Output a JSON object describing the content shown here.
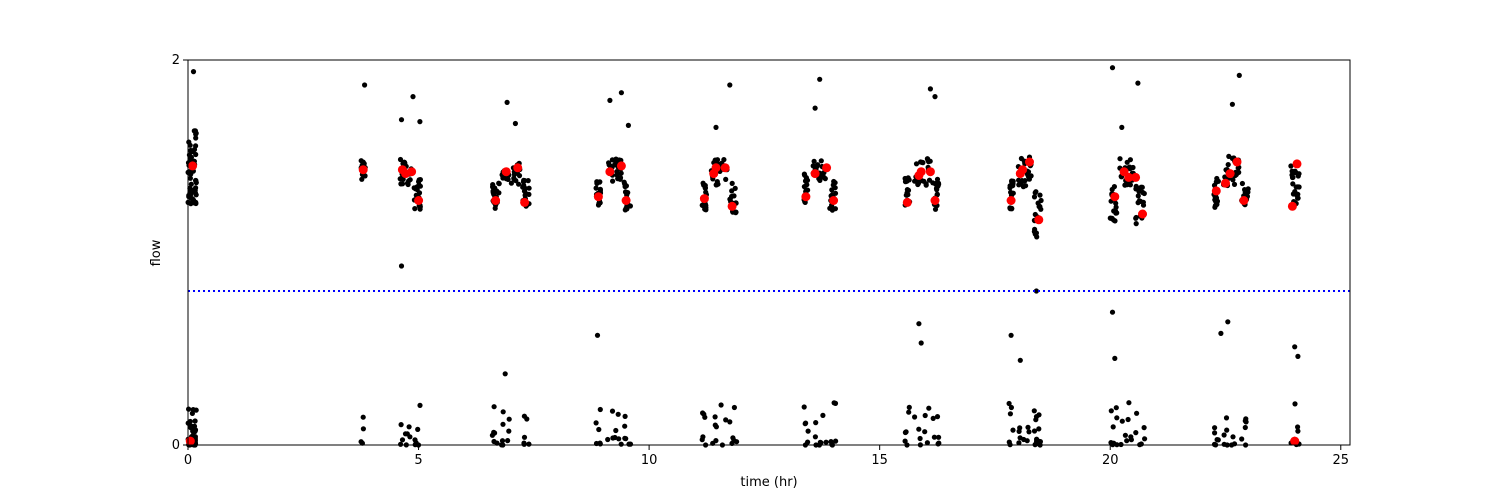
{
  "chart_data": {
    "type": "scatter",
    "title": "",
    "xlabel": "time (hr)",
    "ylabel": "flow",
    "xlim": [
      0,
      25.2
    ],
    "ylim": [
      0,
      2
    ],
    "x_ticks": [
      0,
      5,
      10,
      15,
      20,
      25
    ],
    "y_ticks": [
      0,
      2
    ],
    "x_tick_labels": [
      "0",
      "5",
      "10",
      "15",
      "20",
      "25"
    ],
    "y_tick_labels": [
      "0",
      "2"
    ],
    "grid": false,
    "threshold_line": {
      "y": 0.8,
      "style": "dotted",
      "color": "#0000ff"
    },
    "colors": {
      "raw": "#000000",
      "highlighted": "#ff0000",
      "threshold": "#0000ff"
    },
    "clusters": [
      {
        "x_start": 0.0,
        "x_end": 0.18,
        "high_center": 1.44,
        "high_spread": 0.2,
        "n_high": 60,
        "n_low": 40
      },
      {
        "x_start": 3.75,
        "x_end": 3.85,
        "high_center": 1.43,
        "high_spread": 0.05,
        "n_high": 14,
        "n_low": 4
      },
      {
        "x_start": 4.6,
        "x_end": 4.85,
        "high_center": 1.42,
        "high_spread": 0.07,
        "n_high": 24,
        "n_low": 8
      },
      {
        "x_start": 4.9,
        "x_end": 5.05,
        "high_center": 1.3,
        "high_spread": 0.08,
        "n_high": 20,
        "n_low": 6
      },
      {
        "x_start": 6.6,
        "x_end": 6.75,
        "high_center": 1.3,
        "high_spread": 0.08,
        "n_high": 20,
        "n_low": 6
      },
      {
        "x_start": 6.8,
        "x_end": 7.2,
        "high_center": 1.42,
        "high_spread": 0.07,
        "n_high": 28,
        "n_low": 8
      },
      {
        "x_start": 7.25,
        "x_end": 7.4,
        "high_center": 1.3,
        "high_spread": 0.08,
        "n_high": 20,
        "n_low": 6
      },
      {
        "x_start": 8.85,
        "x_end": 8.95,
        "high_center": 1.3,
        "high_spread": 0.08,
        "n_high": 18,
        "n_low": 6
      },
      {
        "x_start": 9.1,
        "x_end": 9.4,
        "high_center": 1.43,
        "high_spread": 0.06,
        "n_high": 26,
        "n_low": 8
      },
      {
        "x_start": 9.45,
        "x_end": 9.6,
        "high_center": 1.3,
        "high_spread": 0.08,
        "n_high": 20,
        "n_low": 6
      },
      {
        "x_start": 11.15,
        "x_end": 11.25,
        "high_center": 1.3,
        "high_spread": 0.08,
        "n_high": 18,
        "n_low": 6
      },
      {
        "x_start": 11.3,
        "x_end": 11.7,
        "high_center": 1.42,
        "high_spread": 0.07,
        "n_high": 28,
        "n_low": 8
      },
      {
        "x_start": 11.75,
        "x_end": 11.9,
        "high_center": 1.28,
        "high_spread": 0.08,
        "n_high": 18,
        "n_low": 6
      },
      {
        "x_start": 13.35,
        "x_end": 13.45,
        "high_center": 1.33,
        "high_spread": 0.08,
        "n_high": 18,
        "n_low": 6
      },
      {
        "x_start": 13.55,
        "x_end": 13.85,
        "high_center": 1.42,
        "high_spread": 0.06,
        "n_high": 24,
        "n_low": 8
      },
      {
        "x_start": 13.9,
        "x_end": 14.05,
        "high_center": 1.3,
        "high_spread": 0.08,
        "n_high": 18,
        "n_low": 6
      },
      {
        "x_start": 15.55,
        "x_end": 15.65,
        "high_center": 1.3,
        "high_spread": 0.09,
        "n_high": 18,
        "n_low": 6
      },
      {
        "x_start": 15.75,
        "x_end": 16.1,
        "high_center": 1.42,
        "high_spread": 0.07,
        "n_high": 26,
        "n_low": 8
      },
      {
        "x_start": 16.15,
        "x_end": 16.3,
        "high_center": 1.3,
        "high_spread": 0.08,
        "n_high": 18,
        "n_low": 6
      },
      {
        "x_start": 17.8,
        "x_end": 17.9,
        "high_center": 1.3,
        "high_spread": 0.08,
        "n_high": 18,
        "n_low": 6
      },
      {
        "x_start": 18.0,
        "x_end": 18.3,
        "high_center": 1.42,
        "high_spread": 0.08,
        "n_high": 26,
        "n_low": 8
      },
      {
        "x_start": 18.35,
        "x_end": 18.5,
        "high_center": 1.2,
        "high_spread": 0.12,
        "n_high": 20,
        "n_low": 14
      },
      {
        "x_start": 20.0,
        "x_end": 20.15,
        "high_center": 1.25,
        "high_spread": 0.1,
        "n_high": 20,
        "n_low": 8
      },
      {
        "x_start": 20.2,
        "x_end": 20.5,
        "high_center": 1.42,
        "high_spread": 0.07,
        "n_high": 26,
        "n_low": 8
      },
      {
        "x_start": 20.55,
        "x_end": 20.75,
        "high_center": 1.25,
        "high_spread": 0.1,
        "n_high": 20,
        "n_low": 6
      },
      {
        "x_start": 22.25,
        "x_end": 22.35,
        "high_center": 1.3,
        "high_spread": 0.09,
        "n_high": 18,
        "n_low": 6
      },
      {
        "x_start": 22.45,
        "x_end": 22.8,
        "high_center": 1.42,
        "high_spread": 0.08,
        "n_high": 26,
        "n_low": 8
      },
      {
        "x_start": 22.85,
        "x_end": 23.0,
        "high_center": 1.3,
        "high_spread": 0.08,
        "n_high": 18,
        "n_low": 6
      },
      {
        "x_start": 23.9,
        "x_end": 24.1,
        "high_center": 1.35,
        "high_spread": 0.1,
        "n_high": 24,
        "n_low": 8
      }
    ],
    "outliers": [
      {
        "x": 0.12,
        "y": 1.94
      },
      {
        "x": 3.83,
        "y": 1.87
      },
      {
        "x": 4.63,
        "y": 1.69
      },
      {
        "x": 4.88,
        "y": 1.81
      },
      {
        "x": 5.03,
        "y": 1.68
      },
      {
        "x": 4.63,
        "y": 0.93
      },
      {
        "x": 6.92,
        "y": 1.78
      },
      {
        "x": 7.1,
        "y": 1.67
      },
      {
        "x": 8.88,
        "y": 0.57
      },
      {
        "x": 9.15,
        "y": 1.79
      },
      {
        "x": 9.4,
        "y": 1.83
      },
      {
        "x": 9.55,
        "y": 1.66
      },
      {
        "x": 11.45,
        "y": 1.65
      },
      {
        "x": 11.75,
        "y": 1.87
      },
      {
        "x": 13.6,
        "y": 1.75
      },
      {
        "x": 13.7,
        "y": 1.9
      },
      {
        "x": 15.85,
        "y": 0.63
      },
      {
        "x": 15.9,
        "y": 0.53
      },
      {
        "x": 16.1,
        "y": 1.85
      },
      {
        "x": 16.2,
        "y": 1.81
      },
      {
        "x": 17.85,
        "y": 0.57
      },
      {
        "x": 18.05,
        "y": 0.44
      },
      {
        "x": 20.05,
        "y": 1.96
      },
      {
        "x": 20.25,
        "y": 1.65
      },
      {
        "x": 20.6,
        "y": 1.88
      },
      {
        "x": 20.05,
        "y": 0.69
      },
      {
        "x": 20.1,
        "y": 0.45
      },
      {
        "x": 22.4,
        "y": 0.58
      },
      {
        "x": 22.55,
        "y": 0.64
      },
      {
        "x": 22.65,
        "y": 1.77
      },
      {
        "x": 22.8,
        "y": 1.92
      },
      {
        "x": 24.0,
        "y": 0.51
      },
      {
        "x": 24.07,
        "y": 0.46
      },
      {
        "x": 6.88,
        "y": 0.37
      },
      {
        "x": 18.4,
        "y": 0.8
      }
    ],
    "highlighted_points": [
      {
        "x": 0.1,
        "y": 1.45
      },
      {
        "x": 0.05,
        "y": 0.02
      },
      {
        "x": 3.8,
        "y": 1.43
      },
      {
        "x": 4.65,
        "y": 1.43
      },
      {
        "x": 4.72,
        "y": 1.41
      },
      {
        "x": 4.85,
        "y": 1.42
      },
      {
        "x": 5.0,
        "y": 1.27
      },
      {
        "x": 6.67,
        "y": 1.27
      },
      {
        "x": 6.9,
        "y": 1.42
      },
      {
        "x": 7.15,
        "y": 1.44
      },
      {
        "x": 7.3,
        "y": 1.26
      },
      {
        "x": 8.9,
        "y": 1.29
      },
      {
        "x": 9.15,
        "y": 1.42
      },
      {
        "x": 9.4,
        "y": 1.45
      },
      {
        "x": 9.5,
        "y": 1.27
      },
      {
        "x": 11.2,
        "y": 1.28
      },
      {
        "x": 11.4,
        "y": 1.41
      },
      {
        "x": 11.45,
        "y": 1.44
      },
      {
        "x": 11.65,
        "y": 1.44
      },
      {
        "x": 11.8,
        "y": 1.24
      },
      {
        "x": 13.4,
        "y": 1.29
      },
      {
        "x": 13.6,
        "y": 1.41
      },
      {
        "x": 13.85,
        "y": 1.44
      },
      {
        "x": 14.0,
        "y": 1.27
      },
      {
        "x": 15.6,
        "y": 1.26
      },
      {
        "x": 15.85,
        "y": 1.4
      },
      {
        "x": 15.9,
        "y": 1.42
      },
      {
        "x": 16.1,
        "y": 1.42
      },
      {
        "x": 16.2,
        "y": 1.27
      },
      {
        "x": 17.85,
        "y": 1.27
      },
      {
        "x": 18.05,
        "y": 1.41
      },
      {
        "x": 18.1,
        "y": 1.43
      },
      {
        "x": 18.25,
        "y": 1.47
      },
      {
        "x": 18.45,
        "y": 1.17
      },
      {
        "x": 20.1,
        "y": 1.29
      },
      {
        "x": 20.3,
        "y": 1.42
      },
      {
        "x": 20.4,
        "y": 1.39
      },
      {
        "x": 20.55,
        "y": 1.39
      },
      {
        "x": 20.7,
        "y": 1.2
      },
      {
        "x": 22.3,
        "y": 1.32
      },
      {
        "x": 22.5,
        "y": 1.36
      },
      {
        "x": 22.6,
        "y": 1.41
      },
      {
        "x": 22.75,
        "y": 1.47
      },
      {
        "x": 22.9,
        "y": 1.27
      },
      {
        "x": 23.95,
        "y": 1.24
      },
      {
        "x": 24.05,
        "y": 1.46
      },
      {
        "x": 24.0,
        "y": 0.02
      }
    ]
  }
}
